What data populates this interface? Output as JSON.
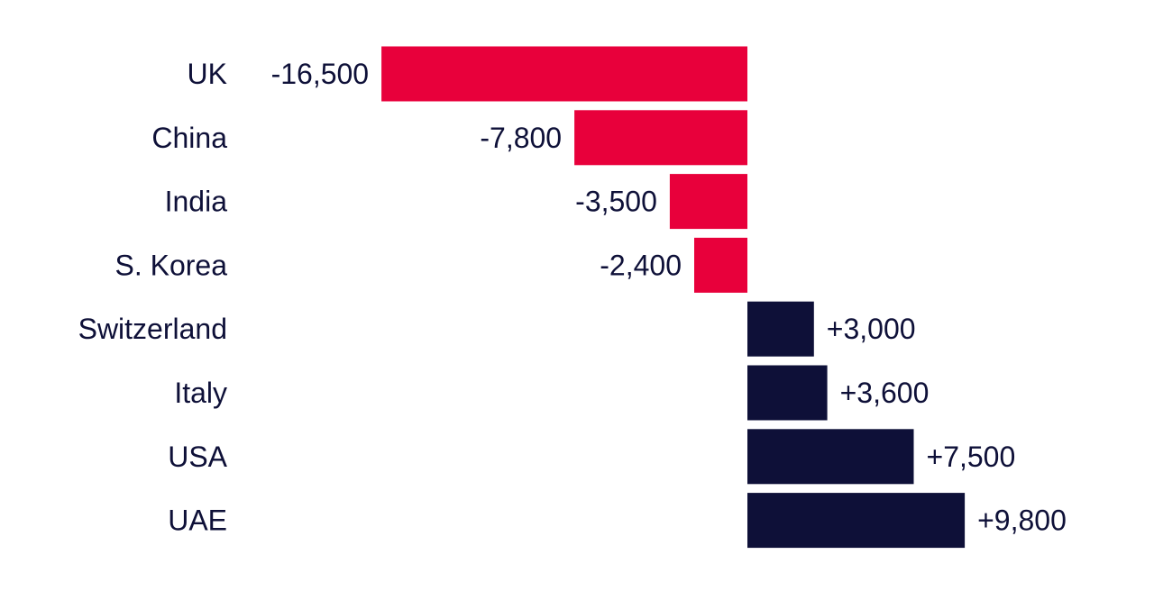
{
  "chart_data": {
    "type": "bar",
    "orientation": "horizontal",
    "categories": [
      "UK",
      "China",
      "India",
      "S. Korea",
      "Switzerland",
      "Italy",
      "USA",
      "UAE"
    ],
    "values": [
      -16500,
      -7800,
      -3500,
      -2400,
      3000,
      3600,
      7500,
      9800
    ],
    "value_labels": [
      "-16,500",
      "-7,800",
      "-3,500",
      "-2,400",
      "+3,000",
      "+3,600",
      "+7,500",
      "+9,800"
    ],
    "colors": {
      "negative": "#e8003b",
      "positive": "#0e1038",
      "text": "#0e1038"
    },
    "grid": false,
    "legend": "none"
  }
}
